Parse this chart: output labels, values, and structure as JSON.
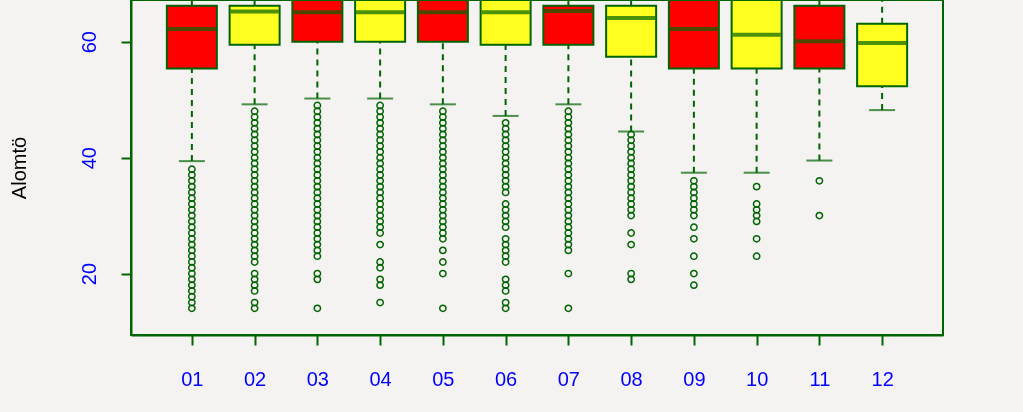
{
  "chart_data": {
    "type": "box",
    "ylabel": "Alomtö",
    "categories": [
      "01",
      "02",
      "03",
      "04",
      "05",
      "06",
      "07",
      "08",
      "09",
      "10",
      "11",
      "12"
    ],
    "colors": [
      "#ff0000",
      "#ffff20",
      "#ff0000",
      "#ffff20",
      "#ff0000",
      "#ffff20",
      "#ff0000",
      "#ffff20",
      "#ff0000",
      "#ffff20",
      "#ff0000",
      "#ffff20"
    ],
    "ylim": [
      9.4,
      67.2
    ],
    "yticks": [
      20,
      40,
      60
    ],
    "boxes": [
      {
        "low": 39.4,
        "q1": 55.4,
        "median": 62.2,
        "q3": 66.2,
        "high": 67.2,
        "outliers": [
          14,
          15,
          16,
          17,
          18,
          19,
          20,
          21,
          22,
          23,
          24,
          25,
          26,
          27,
          28,
          29,
          30,
          31,
          32,
          33,
          34,
          35,
          36,
          37,
          38
        ]
      },
      {
        "low": 49.2,
        "q1": 59.5,
        "median": 65.2,
        "q3": 66.2,
        "high": 67.2,
        "outliers": [
          14,
          15,
          17,
          18,
          19,
          20,
          22,
          23,
          24,
          25,
          26,
          27,
          28,
          29,
          30,
          31,
          32,
          33,
          34,
          35,
          36,
          37,
          38,
          39,
          40,
          41,
          42,
          43,
          44,
          45,
          46,
          47,
          48
        ]
      },
      {
        "low": 50.2,
        "q1": 60,
        "median": 65.1,
        "q3": 67.2,
        "high": 67.2,
        "outliers": [
          14,
          19,
          20,
          23,
          24,
          25,
          26,
          27,
          28,
          29,
          30,
          31,
          32,
          33,
          34,
          35,
          36,
          37,
          38,
          39,
          40,
          41,
          42,
          43,
          44,
          45,
          46,
          47,
          48,
          49
        ]
      },
      {
        "low": 50.2,
        "q1": 60,
        "median": 65.1,
        "q3": 67.2,
        "high": 67.2,
        "outliers": [
          15,
          18,
          19,
          21,
          22,
          25,
          27,
          28,
          29,
          30,
          31,
          32,
          33,
          34,
          35,
          36,
          37,
          38,
          39,
          40,
          41,
          42,
          43,
          44,
          45,
          46,
          47,
          48,
          49
        ]
      },
      {
        "low": 49.2,
        "q1": 60,
        "median": 65.1,
        "q3": 67.2,
        "high": 67.2,
        "outliers": [
          14,
          20,
          22,
          24,
          26,
          27,
          28,
          29,
          30,
          31,
          32,
          33,
          34,
          35,
          36,
          37,
          38,
          39,
          40,
          41,
          42,
          43,
          44,
          45,
          46,
          47,
          48
        ]
      },
      {
        "low": 47.2,
        "q1": 59.5,
        "median": 65.1,
        "q3": 67.2,
        "high": 67.2,
        "outliers": [
          14,
          15,
          17,
          18,
          19,
          22,
          23,
          24,
          25,
          26,
          28,
          29,
          30,
          31,
          32,
          34,
          35,
          36,
          37,
          38,
          39,
          40,
          41,
          42,
          43,
          44,
          45,
          46
        ]
      },
      {
        "low": 49.2,
        "q1": 59.5,
        "median": 65.3,
        "q3": 66.2,
        "high": 67.2,
        "outliers": [
          14,
          20,
          24,
          25,
          26,
          27,
          28,
          29,
          30,
          31,
          32,
          33,
          34,
          35,
          36,
          37,
          38,
          39,
          40,
          41,
          42,
          43,
          44,
          45,
          46,
          47,
          48
        ]
      },
      {
        "low": 44.5,
        "q1": 57.4,
        "median": 64.1,
        "q3": 66.2,
        "high": 67.2,
        "outliers": [
          19,
          20,
          25,
          27,
          30,
          31,
          32,
          33,
          34,
          35,
          36,
          37,
          38,
          39,
          40,
          41,
          42,
          43,
          44
        ]
      },
      {
        "low": 37.4,
        "q1": 55.4,
        "median": 62.2,
        "q3": 67.2,
        "high": 67.2,
        "outliers": [
          18,
          20,
          23,
          26,
          28,
          30,
          31,
          32,
          33,
          34,
          35,
          36
        ]
      },
      {
        "low": 37.4,
        "q1": 55.4,
        "median": 61.2,
        "q3": 67.2,
        "high": 67.2,
        "outliers": [
          23,
          26,
          29,
          30,
          31,
          32,
          35
        ]
      },
      {
        "low": 39.5,
        "q1": 55.4,
        "median": 60.1,
        "q3": 66.2,
        "high": 67.2,
        "outliers": [
          30,
          36
        ]
      },
      {
        "low": 48.2,
        "q1": 52.3,
        "median": 59.8,
        "q3": 63.1,
        "high": 67.2
      }
    ]
  }
}
